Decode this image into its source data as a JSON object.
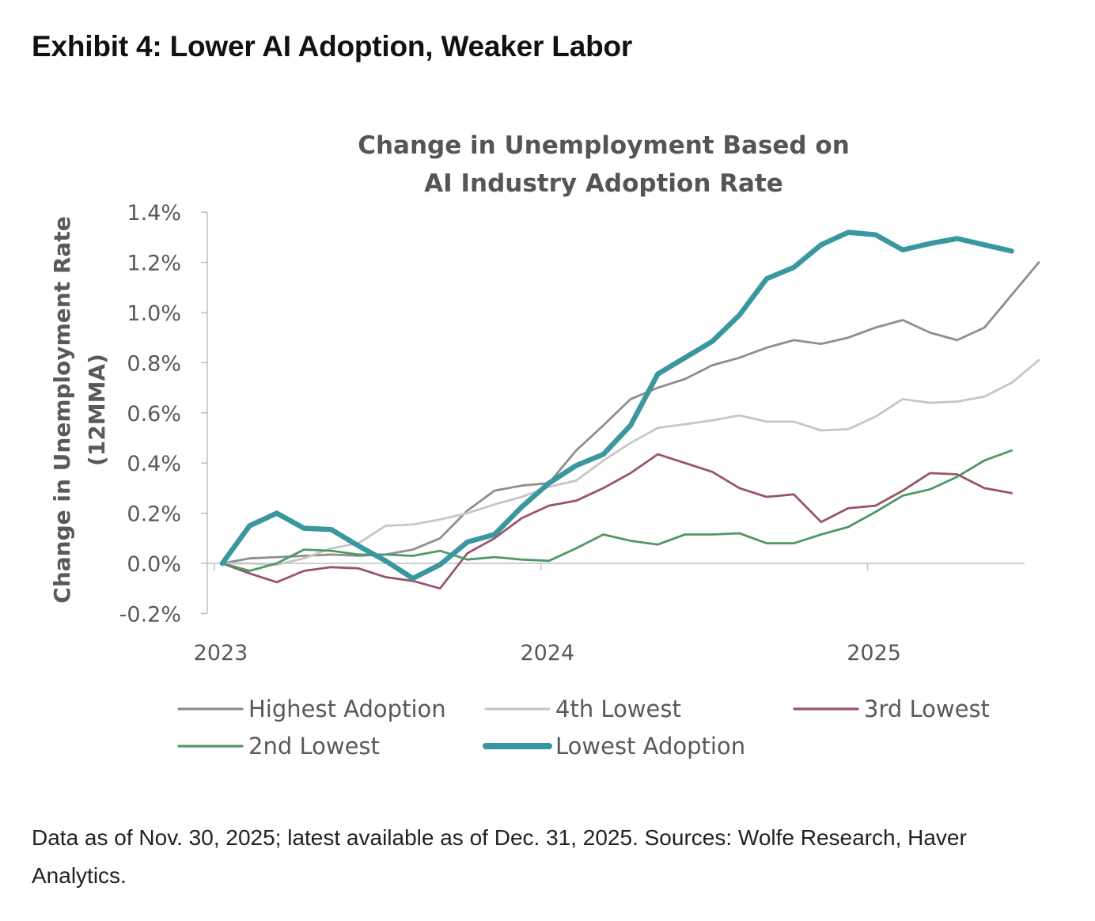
{
  "exhibit_title": "Exhibit 4: Lower AI Adoption, Weaker Labor",
  "footnote": "Data as of Nov. 30, 2025; latest available as of Dec. 31, 2025. Sources: Wolfe Research, Haver Analytics.",
  "chart_data": {
    "type": "line",
    "title_lines": [
      "Change in Unemployment Based on",
      "AI Industry Adoption Rate"
    ],
    "ylabel_lines": [
      "Change in Unemployment Rate",
      "(12MMA)"
    ],
    "xlabel": "",
    "x_tick_labels": [
      "2023",
      "2024",
      "2025"
    ],
    "y_tick_labels": [
      "1.4%",
      "1.2%",
      "1.0%",
      "0.8%",
      "0.6%",
      "0.4%",
      "0.2%",
      "0.0%",
      "-0.2%"
    ],
    "ylim": [
      -0.2,
      1.4
    ],
    "x_start": "2023-01",
    "x_end": "2025-11",
    "x_step": "monthly",
    "grid": false,
    "legend_position": "bottom",
    "series": [
      {
        "name": "Highest Adoption",
        "color": "#8e8e8e",
        "stroke": "thin",
        "values": [
          0.0,
          0.02,
          0.025,
          0.03,
          0.035,
          0.03,
          0.035,
          0.055,
          0.1,
          0.21,
          0.29,
          0.31,
          0.32,
          0.45,
          0.55,
          0.655,
          0.7,
          0.735,
          0.79,
          0.82,
          0.86,
          0.89,
          0.875,
          0.9,
          0.94,
          0.97,
          0.92,
          0.89,
          0.94,
          1.07,
          1.2
        ]
      },
      {
        "name": "4th Lowest",
        "color": "#c6c6c6",
        "stroke": "thin",
        "values": [
          0.0,
          0.0,
          -0.005,
          0.02,
          0.06,
          0.08,
          0.15,
          0.155,
          0.175,
          0.2,
          0.235,
          0.265,
          0.305,
          0.33,
          0.41,
          0.48,
          0.54,
          0.555,
          0.57,
          0.59,
          0.565,
          0.565,
          0.53,
          0.535,
          0.585,
          0.655,
          0.64,
          0.645,
          0.665,
          0.72,
          0.81
        ]
      },
      {
        "name": "3rd Lowest",
        "color": "#9a5368",
        "stroke": "thin",
        "values": [
          0.0,
          -0.04,
          -0.075,
          -0.03,
          -0.015,
          -0.02,
          -0.055,
          -0.07,
          -0.1,
          0.04,
          0.1,
          0.18,
          0.23,
          0.25,
          0.3,
          0.36,
          0.435,
          0.4,
          0.365,
          0.3,
          0.265,
          0.275,
          0.165,
          0.22,
          0.23,
          0.29,
          0.36,
          0.355,
          0.3,
          0.28
        ]
      },
      {
        "name": "2nd Lowest",
        "color": "#4f9866",
        "stroke": "thin",
        "values": [
          0.0,
          -0.03,
          0.0,
          0.055,
          0.05,
          0.035,
          0.035,
          0.03,
          0.05,
          0.015,
          0.025,
          0.015,
          0.01,
          0.06,
          0.115,
          0.09,
          0.075,
          0.115,
          0.115,
          0.12,
          0.08,
          0.08,
          0.115,
          0.145,
          0.205,
          0.27,
          0.295,
          0.345,
          0.41,
          0.45
        ]
      },
      {
        "name": "Lowest Adoption",
        "color": "#3a97a0",
        "stroke": "thick",
        "values": [
          0.0,
          0.15,
          0.2,
          0.14,
          0.135,
          0.07,
          0.01,
          -0.06,
          -0.005,
          0.085,
          0.115,
          0.225,
          0.32,
          0.39,
          0.435,
          0.55,
          0.755,
          0.82,
          0.885,
          0.99,
          1.135,
          1.18,
          1.27,
          1.32,
          1.31,
          1.25,
          1.275,
          1.295,
          1.27,
          1.245
        ]
      }
    ]
  }
}
